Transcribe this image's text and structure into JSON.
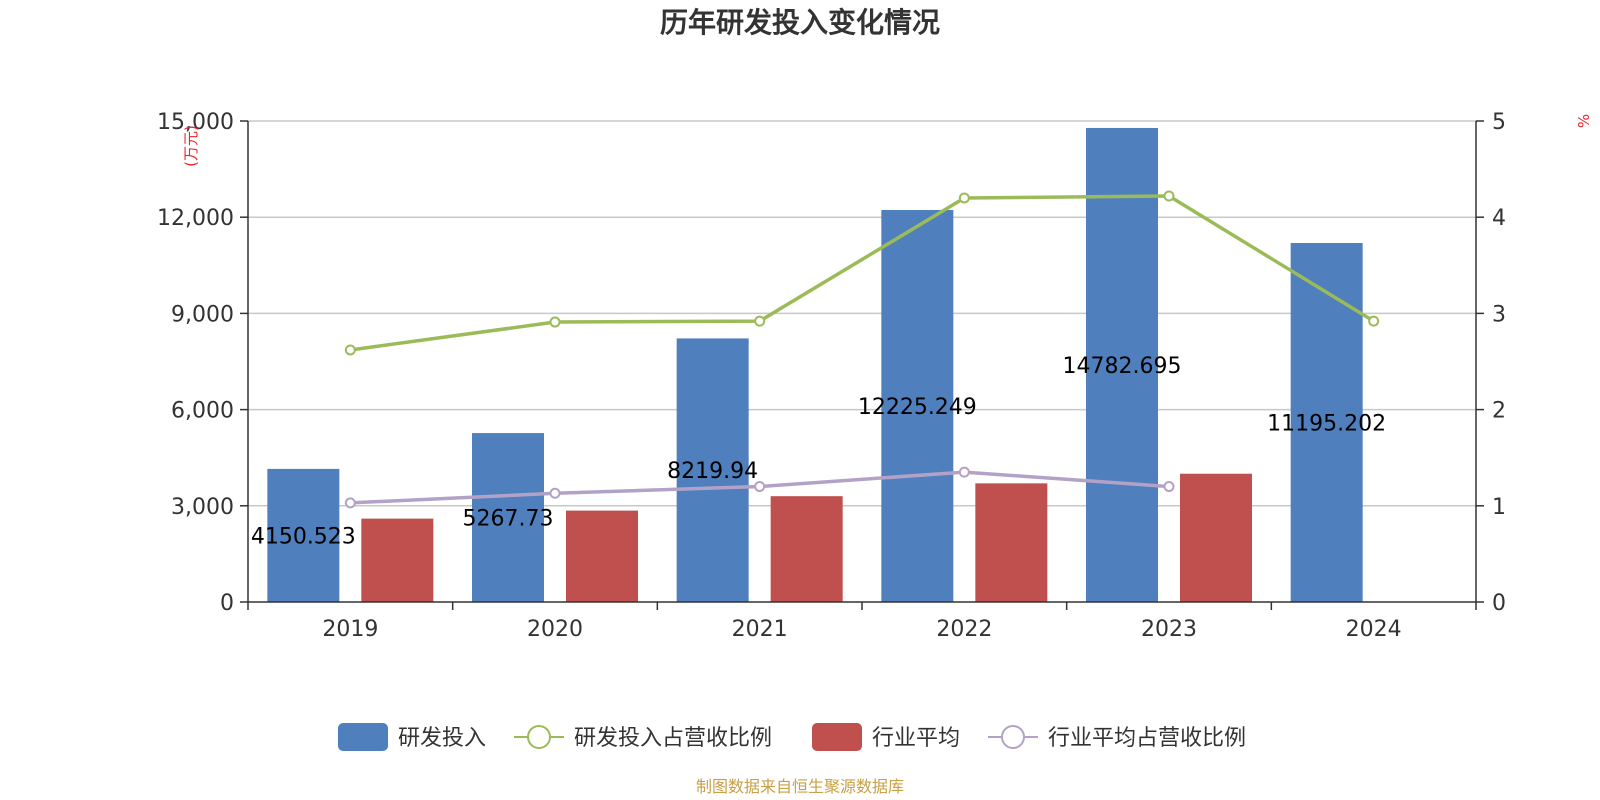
{
  "chart_data": {
    "type": "bar",
    "title": "历年研发投入变化情况",
    "categories": [
      "2019",
      "2020",
      "2021",
      "2022",
      "2023",
      "2024"
    ],
    "left_axis": {
      "unit": "(万元)",
      "ylim": [
        0,
        15000
      ],
      "ticks": [
        "0",
        "3,000",
        "6,000",
        "9,000",
        "12,000",
        "15,000"
      ],
      "tick_values": [
        0,
        3000,
        6000,
        9000,
        12000,
        15000
      ]
    },
    "right_axis": {
      "unit": "%",
      "ylim": [
        0,
        5
      ],
      "ticks": [
        "0",
        "1",
        "2",
        "3",
        "4",
        "5"
      ],
      "tick_values": [
        0,
        1,
        2,
        3,
        4,
        5
      ]
    },
    "series": [
      {
        "name": "研发投入",
        "kind": "bar",
        "axis": "left",
        "color": "#4f7fbd",
        "values": [
          4150.523,
          5267.73,
          8219.94,
          12225.249,
          14782.695,
          11195.202
        ],
        "labels": [
          "4150.523",
          "5267.73",
          "8219.94",
          "12225.249",
          "14782.695",
          "11195.202"
        ]
      },
      {
        "name": "研发投入占营收比例",
        "kind": "line",
        "axis": "right",
        "color": "#9bbb59",
        "values": [
          2.62,
          2.91,
          2.92,
          4.2,
          4.22,
          2.92
        ]
      },
      {
        "name": "行业平均",
        "kind": "bar",
        "axis": "left",
        "color": "#c0504d",
        "values": [
          2600,
          2850,
          3300,
          3700,
          4000,
          null
        ]
      },
      {
        "name": "行业平均占营收比例",
        "kind": "line",
        "axis": "right",
        "color": "#b3a2c7",
        "values": [
          1.03,
          1.13,
          1.2,
          1.35,
          1.2,
          null
        ]
      }
    ],
    "grid": true,
    "legend_position": "bottom"
  },
  "source_note": "制图数据来自恒生聚源数据库",
  "colors": {
    "unit_red": "#e8262b",
    "source": "#c8a046",
    "axis": "#333333",
    "grid": "#c8c8c8"
  }
}
